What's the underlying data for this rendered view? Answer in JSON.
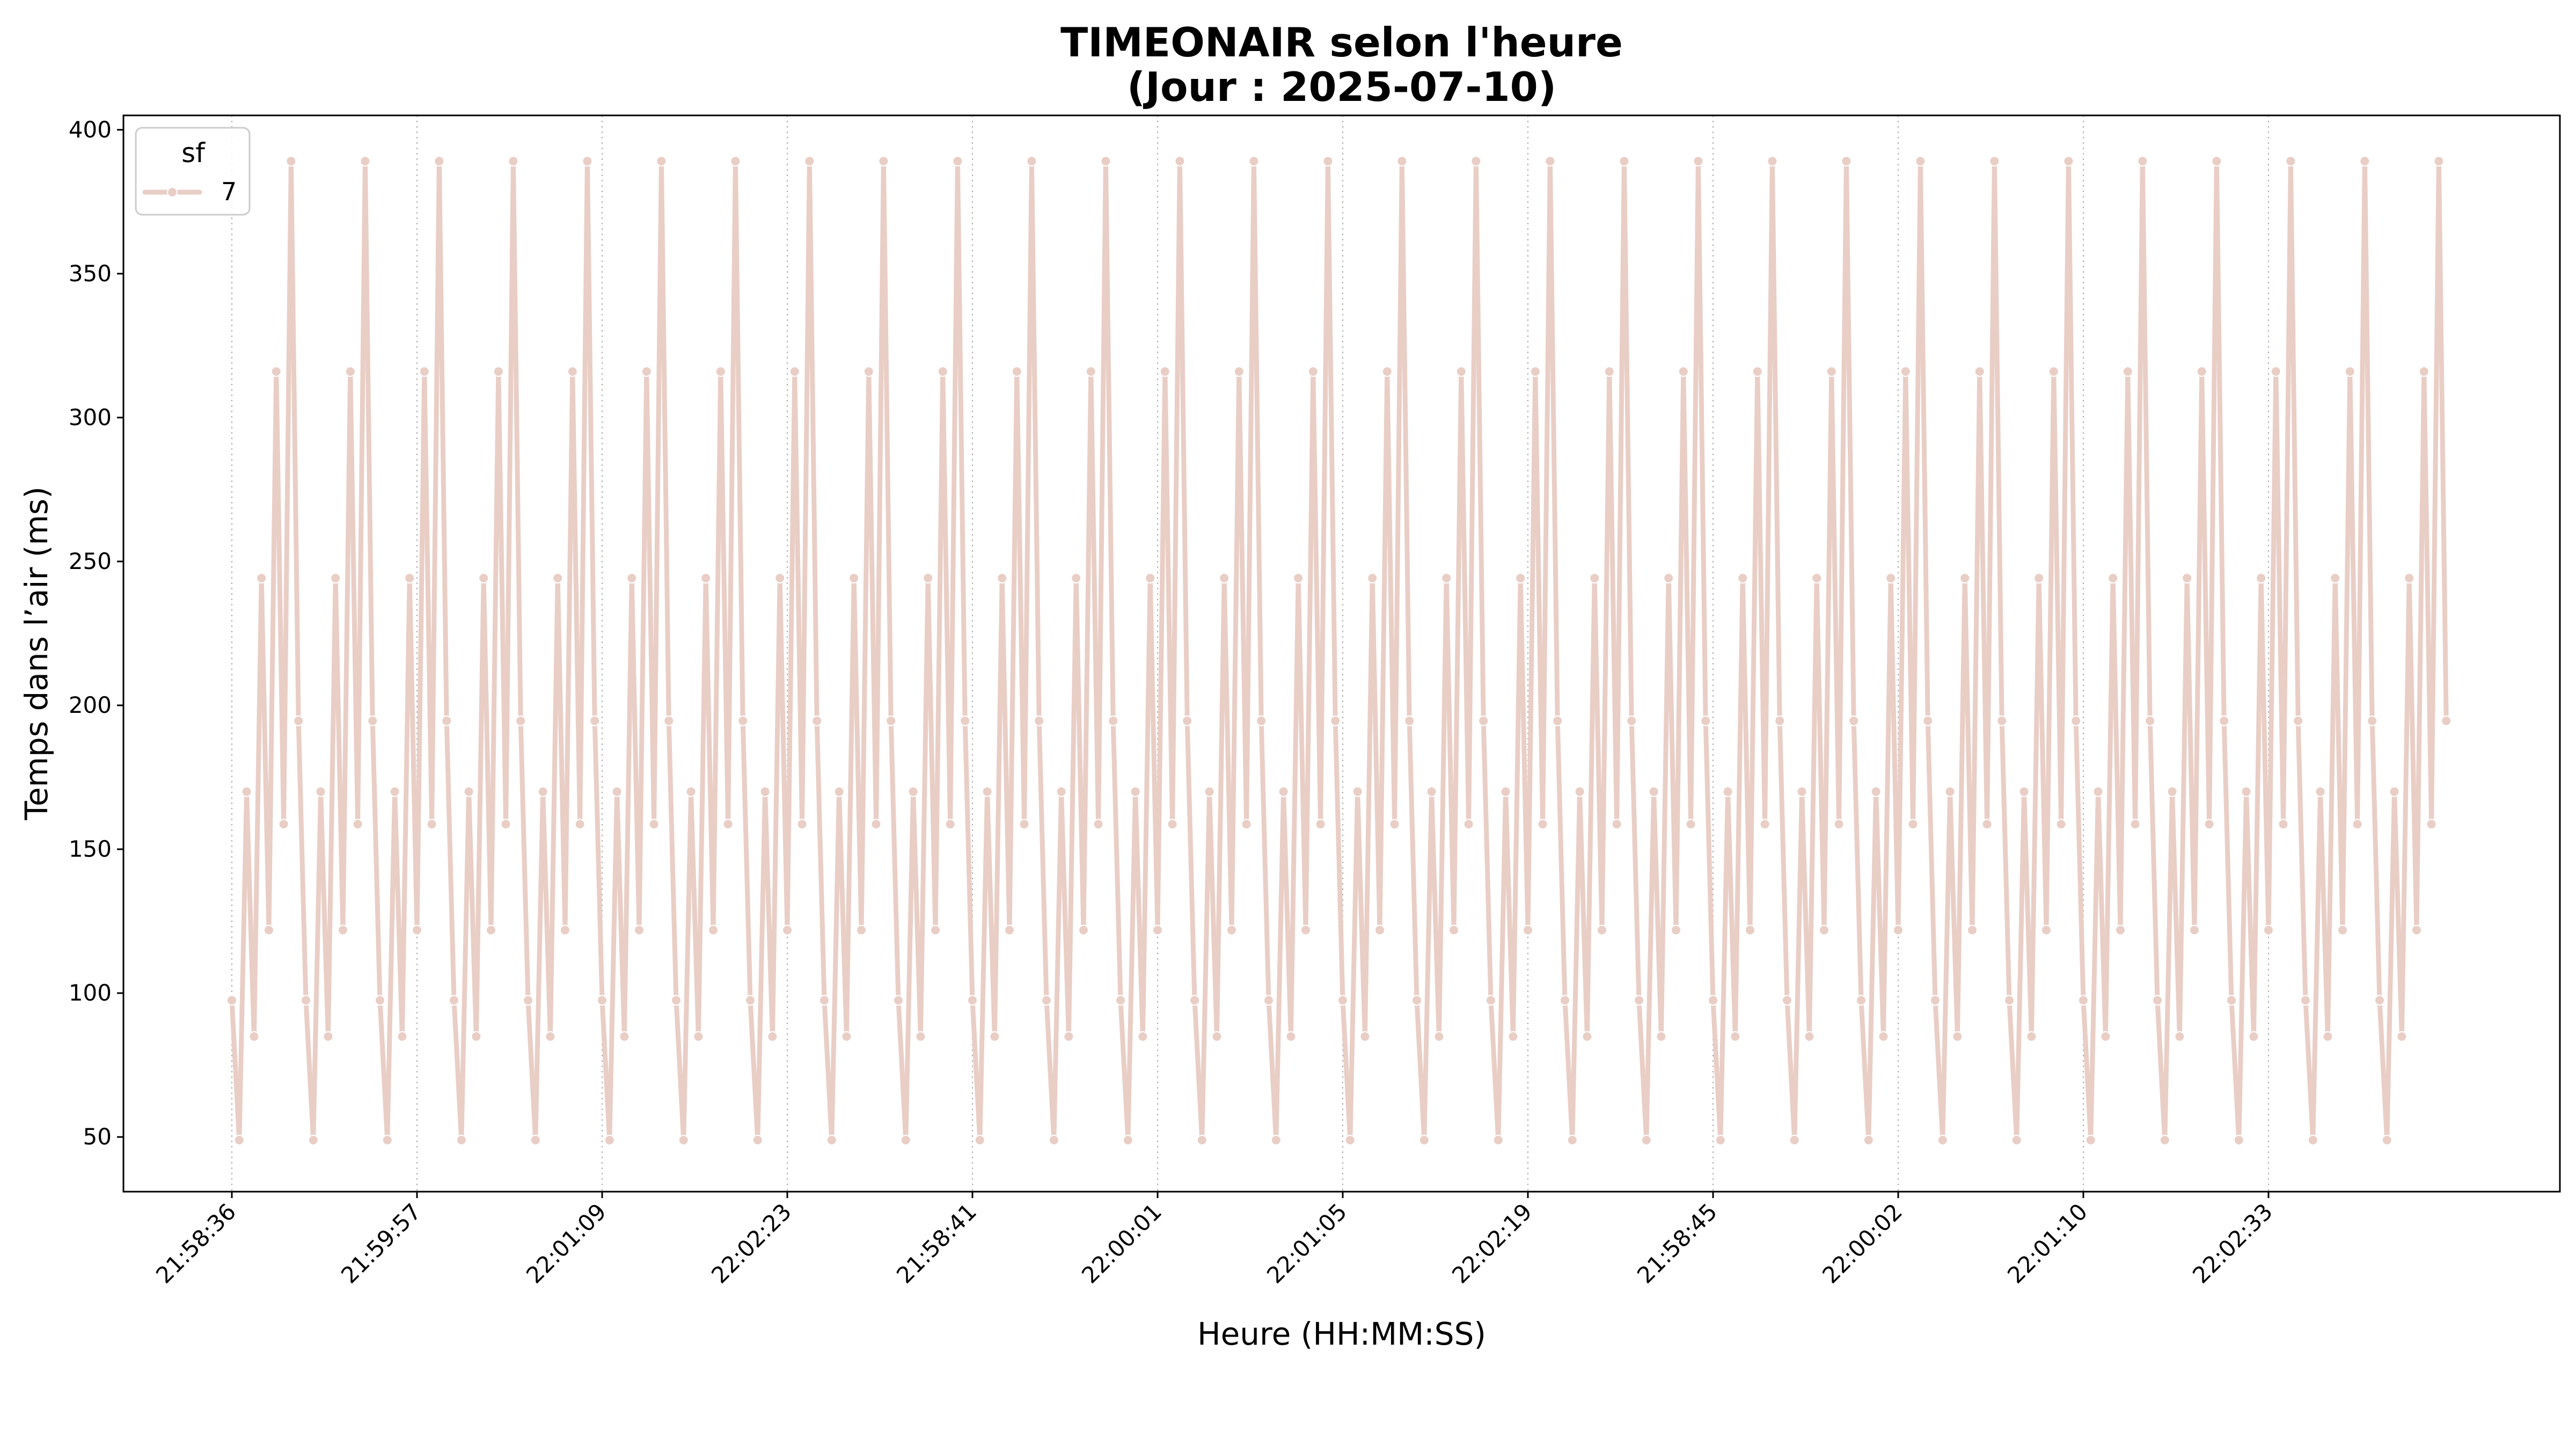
{
  "chart_data": {
    "type": "line",
    "title": "TIMEONAIR selon l'heure",
    "subtitle": "(Jour : 2025-07-10)",
    "xlabel": "Heure (HH:MM:SS)",
    "ylabel": "Temps dans l’air (ms)",
    "ylim": [
      31,
      405
    ],
    "yticks": [
      50,
      100,
      150,
      200,
      250,
      300,
      350,
      400
    ],
    "xtick_labels": [
      "21:58:36",
      "21:59:57",
      "22:01:09",
      "22:02:23",
      "21:58:41",
      "22:00:01",
      "22:01:05",
      "22:02:19",
      "21:58:45",
      "22:00:02",
      "22:01:10",
      "22:02:33"
    ],
    "xtick_step_points": 25,
    "point_count": 300,
    "grid": "vertical-dotted",
    "legend": {
      "title": "sf",
      "position": "top-left",
      "entries": [
        "7"
      ]
    },
    "series": [
      {
        "name": "7",
        "color": "#e9cec6",
        "pattern_repeat": 30,
        "pattern": [
          97.5,
          48.9,
          170.0,
          84.9,
          244.2,
          121.9,
          316.0,
          158.7,
          389.1,
          194.6
        ]
      }
    ]
  }
}
